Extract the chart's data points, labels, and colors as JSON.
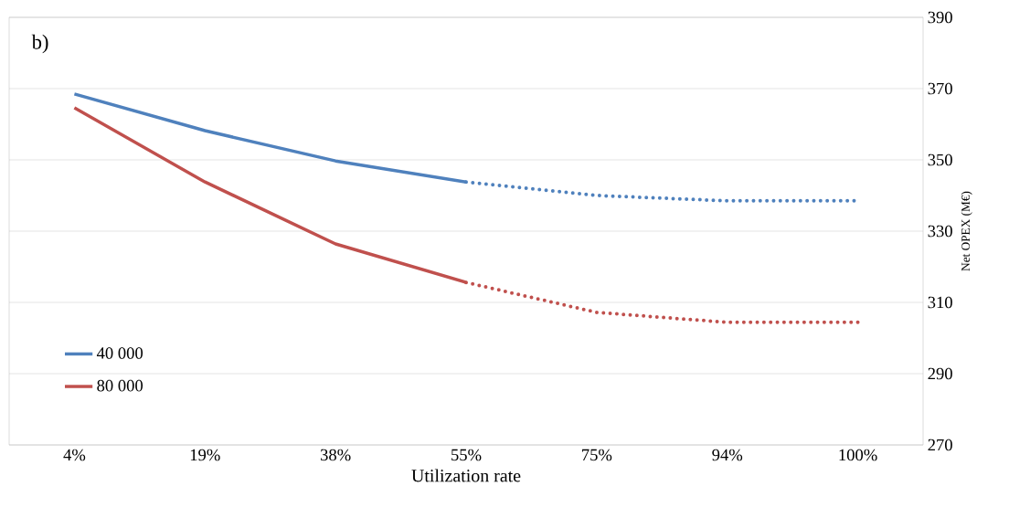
{
  "chart_data": {
    "type": "line",
    "xlabel": "Utilization rate",
    "ylabel": "Net OPEX (M€)",
    "categories": [
      "4%",
      "19%",
      "38%",
      "55%",
      "75%",
      "94%",
      "100%"
    ],
    "series": [
      {
        "name": "40 000",
        "color": "#4f81bd",
        "line_style": "solid",
        "values": [
          368.5,
          358.2,
          349.7,
          343.8,
          null,
          null,
          null
        ]
      },
      {
        "name": "80 000",
        "color": "#c0504d",
        "line_style": "solid",
        "values": [
          364.6,
          343.8,
          326.4,
          315.6,
          null,
          null,
          null
        ]
      },
      {
        "color": "#4f81bd",
        "line_style": "dotted",
        "values": [
          null,
          null,
          null,
          343.8,
          340.0,
          338.5,
          338.5
        ]
      },
      {
        "color": "#c0504d",
        "line_style": "dotted",
        "values": [
          null,
          null,
          null,
          315.6,
          307.2,
          304.4,
          304.4
        ]
      }
    ],
    "ylim": [
      270,
      390
    ],
    "yticks": [
      270,
      290,
      310,
      330,
      350,
      370,
      390
    ],
    "grid": "y",
    "legend": "bottom left",
    "marker": "none",
    "annotations": [
      "b)"
    ]
  }
}
